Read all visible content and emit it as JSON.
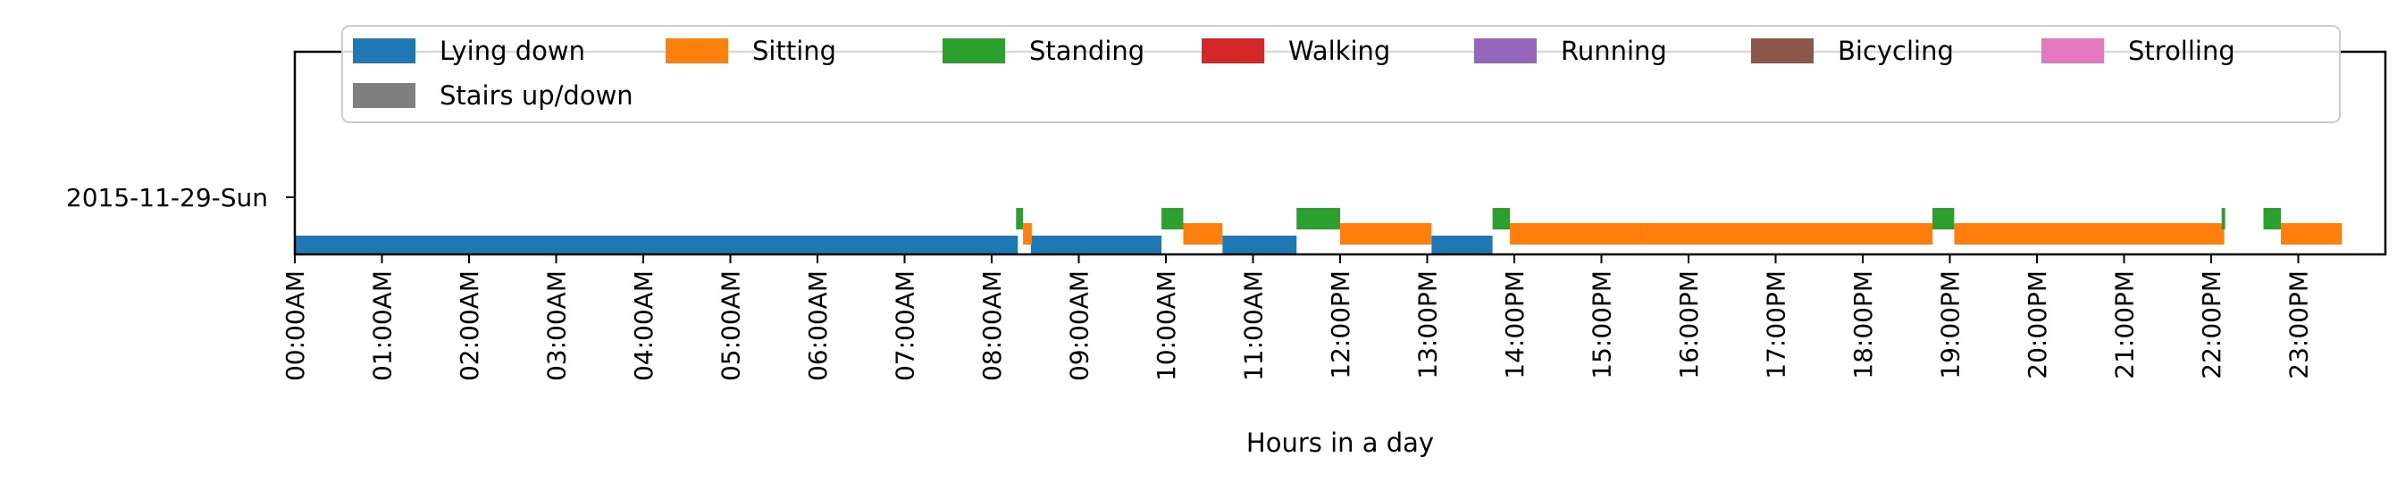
{
  "chart_data": {
    "type": "timeline",
    "day_labels": [
      "2015-11-29-Sun"
    ],
    "xlabel": "Hours in a day",
    "xlim": [
      0,
      24
    ],
    "x_ticks": [
      0,
      1,
      2,
      3,
      4,
      5,
      6,
      7,
      8,
      9,
      10,
      11,
      12,
      13,
      14,
      15,
      16,
      17,
      18,
      19,
      20,
      21,
      22,
      23
    ],
    "x_tick_labels": [
      "00:00AM",
      "01:00AM",
      "02:00AM",
      "03:00AM",
      "04:00AM",
      "05:00AM",
      "06:00AM",
      "07:00AM",
      "08:00AM",
      "09:00AM",
      "10:00AM",
      "11:00AM",
      "12:00PM",
      "13:00PM",
      "14:00PM",
      "15:00PM",
      "16:00PM",
      "17:00PM",
      "18:00PM",
      "19:00PM",
      "20:00PM",
      "21:00PM",
      "22:00PM",
      "23:00PM"
    ],
    "legend_placement": "top",
    "grid": false,
    "series": [
      {
        "name": "Lying down",
        "color": "#1f77b4",
        "lane": 0,
        "segments": [
          [
            0,
            8.3
          ],
          [
            8.45,
            9.95
          ],
          [
            10.65,
            11.5
          ],
          [
            13.05,
            13.75
          ]
        ]
      },
      {
        "name": "Sitting",
        "color": "#ff7f0e",
        "lane": 1,
        "segments": [
          [
            8.36,
            8.46
          ],
          [
            10.2,
            10.65
          ],
          [
            12.0,
            13.05
          ],
          [
            13.95,
            15.5
          ],
          [
            15.5,
            18.8
          ],
          [
            19.05,
            22.15
          ],
          [
            22.8,
            23.5
          ]
        ]
      },
      {
        "name": "Standing",
        "color": "#2ca02c",
        "lane": 2,
        "segments": [
          [
            8.28,
            8.36
          ],
          [
            9.95,
            10.2
          ],
          [
            11.5,
            12.0
          ],
          [
            13.75,
            13.95
          ],
          [
            18.8,
            19.05
          ],
          [
            22.12,
            22.16
          ],
          [
            22.6,
            22.8
          ]
        ]
      },
      {
        "name": "Walking",
        "color": "#d62728",
        "lane": 2,
        "segments": []
      },
      {
        "name": "Running",
        "color": "#9467bd",
        "lane": 2,
        "segments": []
      },
      {
        "name": "Bicycling",
        "color": "#8c564b",
        "lane": 2,
        "segments": []
      },
      {
        "name": "Strolling",
        "color": "#e377c2",
        "lane": 2,
        "segments": []
      },
      {
        "name": "Stairs up/down",
        "color": "#7f7f7f",
        "lane": 2,
        "segments": []
      }
    ]
  }
}
